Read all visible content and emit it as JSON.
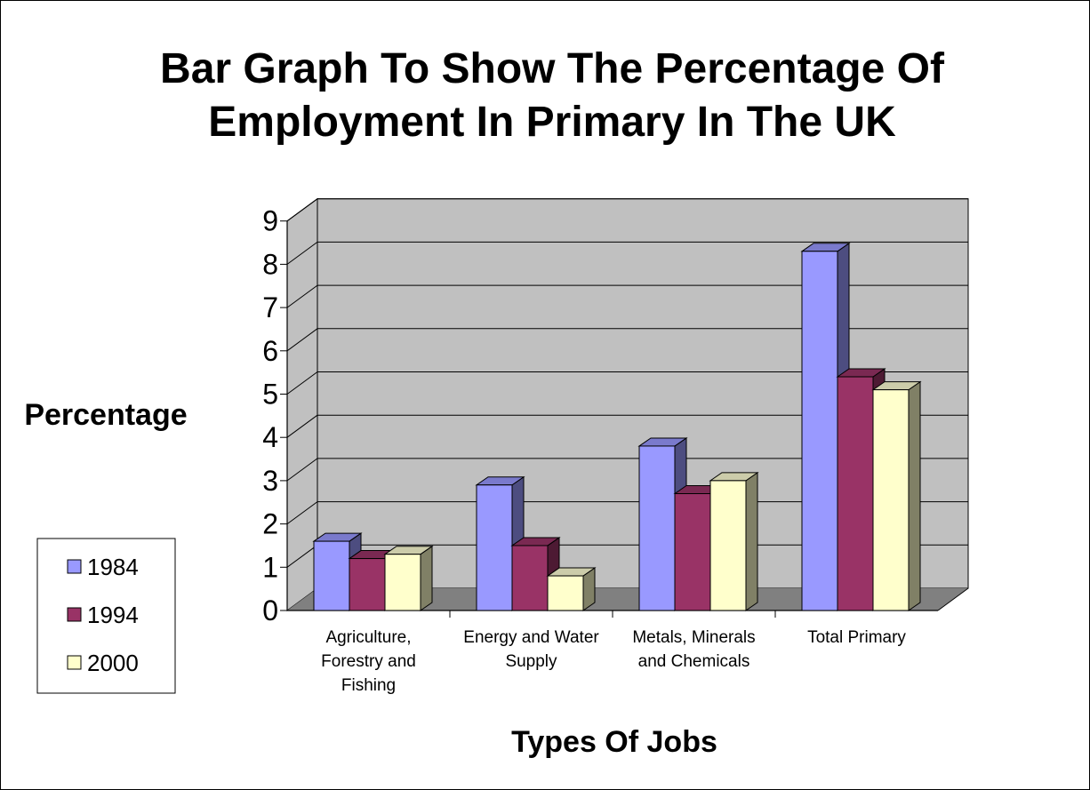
{
  "chart_data": {
    "type": "bar",
    "title": "Bar Graph To Show The Percentage Of Employment In Primary In The UK",
    "title_lines": [
      "Bar Graph To Show The Percentage Of",
      "Employment In Primary In The UK"
    ],
    "xlabel": "Types Of Jobs",
    "ylabel": "Percentage",
    "ylim": [
      0,
      9
    ],
    "yticks": [
      "0",
      "1",
      "2",
      "3",
      "4",
      "5",
      "6",
      "7",
      "8",
      "9"
    ],
    "grid": true,
    "legend_position": "bottom-left",
    "categories": [
      "Agriculture, Forestry and Fishing",
      "Energy and Water Supply",
      "Metals, Minerals and Chemicals",
      "Total Primary"
    ],
    "category_label_lines": [
      [
        "Agriculture,",
        "Forestry and",
        "Fishing"
      ],
      [
        "Energy and Water",
        "Supply"
      ],
      [
        "Metals, Minerals",
        "and Chemicals"
      ],
      [
        "Total Primary"
      ]
    ],
    "series": [
      {
        "name": "1984",
        "values": [
          1.6,
          2.9,
          3.8,
          8.3
        ],
        "color": "#9999ff",
        "top_color": "#7a7acc",
        "side_color": "#4d4d80"
      },
      {
        "name": "1994",
        "values": [
          1.2,
          1.5,
          2.7,
          5.4
        ],
        "color": "#993366",
        "top_color": "#7a2952",
        "side_color": "#4d1a33"
      },
      {
        "name": "2000",
        "values": [
          1.3,
          0.8,
          3.0,
          5.1
        ],
        "color": "#ffffcc",
        "top_color": "#ccccaa",
        "side_color": "#808066"
      }
    ],
    "colors": {
      "wall": "#c0c0c0",
      "floor": "#808080",
      "gridline": "#000000"
    }
  }
}
